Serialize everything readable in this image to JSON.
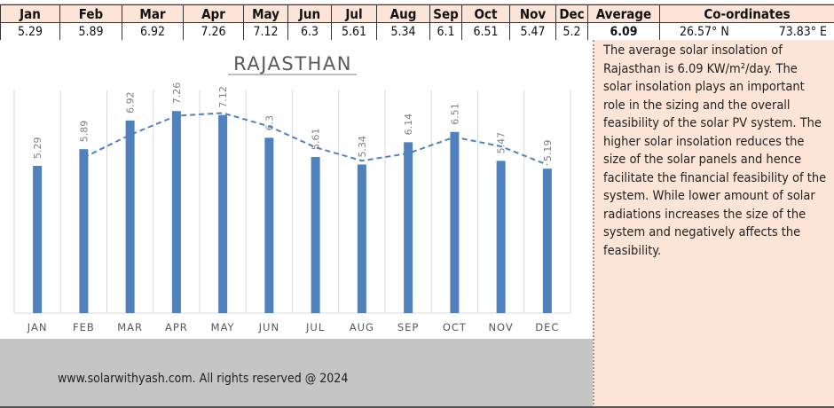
{
  "table": {
    "headers": [
      "Jan",
      "Feb",
      "Mar",
      "Apr",
      "May",
      "Jun",
      "Jul",
      "Aug",
      "Sep",
      "Oct",
      "Nov",
      "Dec",
      "Average",
      "Co-ordinates"
    ],
    "values": [
      "5.29",
      "5.89",
      "6.92",
      "7.26",
      "7.12",
      "6.3",
      "5.61",
      "5.34",
      "6.1",
      "6.51",
      "5.47",
      "5.2"
    ],
    "average": "6.09",
    "latitude": "26.57° N",
    "longitude": "73.83° E",
    "highlight_colors": {
      "max": "#c6efce",
      "min": "#ffc7ce",
      "average": "#ddebf7"
    }
  },
  "chart_data": {
    "type": "bar",
    "title": "RAJASTHAN",
    "categories": [
      "JAN",
      "FEB",
      "MAR",
      "APR",
      "MAY",
      "JUN",
      "JUL",
      "AUG",
      "SEP",
      "OCT",
      "NOV",
      "DEC"
    ],
    "values": [
      5.29,
      5.89,
      6.92,
      7.26,
      7.12,
      6.3,
      5.61,
      5.34,
      6.14,
      6.51,
      5.47,
      5.19
    ],
    "data_labels": [
      "5.29",
      "5.89",
      "6.92",
      "7.26",
      "7.12",
      "6.3",
      "5.61",
      "5.34",
      "6.14",
      "6.51",
      "5.47",
      "5.19"
    ],
    "trendline": "2-period moving average (dashed)",
    "ylim": [
      0,
      8
    ],
    "grid": "vertical",
    "bar_color": "#4f81bd"
  },
  "description": "The average solar insolation of Rajasthan is 6.09 KW/m²/day. The solar insolation plays an important role in the sizing and the overall feasibility of the solar PV system. The higher solar insolation reduces the size of the solar panels and hence facilitate the financial feasibility of the system. While lower amount of solar radiations increases the size of the system and negatively affects the feasibility.",
  "footer": "www.solarwithyash.com.  All rights reserved @ 2024"
}
